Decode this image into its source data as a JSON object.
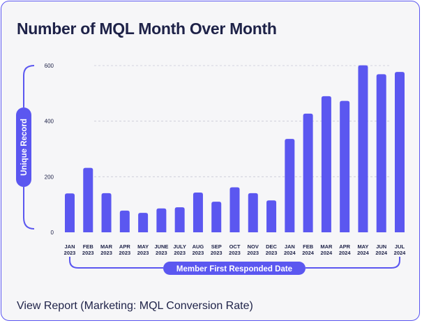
{
  "chart_data": {
    "type": "bar",
    "title": "Number of MQL Month Over Month",
    "ylabel": "Unique Record",
    "xlabel": "Member First Responded Date",
    "ylim": [
      0,
      600
    ],
    "yticks": [
      0,
      200,
      400,
      600
    ],
    "grid": true,
    "bar_color": "#5b57f0",
    "categories": [
      {
        "month": "JAN",
        "year": "2023"
      },
      {
        "month": "FEB",
        "year": "2023"
      },
      {
        "month": "MAR",
        "year": "2023"
      },
      {
        "month": "APR",
        "year": "2023"
      },
      {
        "month": "MAY",
        "year": "2023"
      },
      {
        "month": "JUNE",
        "year": "2023"
      },
      {
        "month": "JULY",
        "year": "2023"
      },
      {
        "month": "AUG",
        "year": "2023"
      },
      {
        "month": "SEP",
        "year": "2023"
      },
      {
        "month": "OCT",
        "year": "2023"
      },
      {
        "month": "NOV",
        "year": "2023"
      },
      {
        "month": "DEC",
        "year": "2023"
      },
      {
        "month": "JAN",
        "year": "2024"
      },
      {
        "month": "FEB",
        "year": "2024"
      },
      {
        "month": "MAR",
        "year": "2024"
      },
      {
        "month": "APR",
        "year": "2024"
      },
      {
        "month": "MAY",
        "year": "2024"
      },
      {
        "month": "JUN",
        "year": "2024"
      },
      {
        "month": "JUL",
        "year": "2024"
      }
    ],
    "values": [
      140,
      232,
      141,
      78,
      70,
      86,
      90,
      143,
      110,
      162,
      141,
      115,
      336,
      427,
      490,
      473,
      601,
      569,
      577
    ]
  },
  "footer": {
    "link_text": "View Report (Marketing: MQL Conversion Rate)"
  }
}
